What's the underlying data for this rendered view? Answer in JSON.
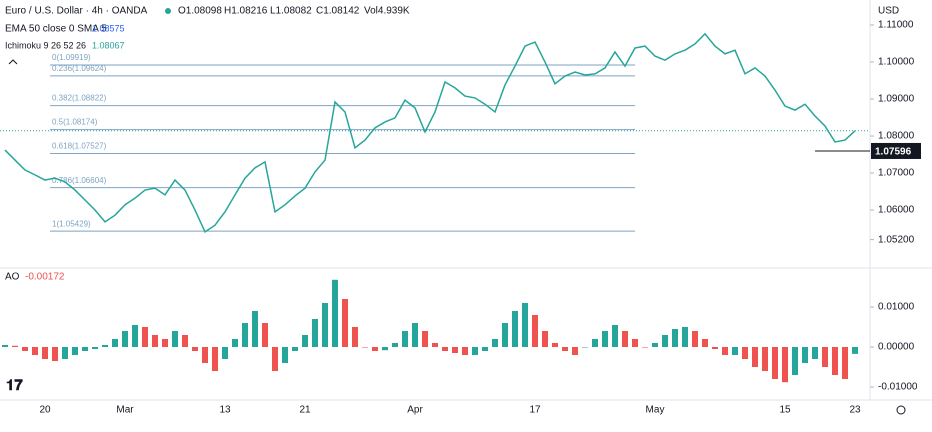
{
  "chart_data": [
    {
      "type": "line",
      "title": "Euro / U.S. Dollar · 4h · OANDA",
      "ohlc": [
        "O1.08098",
        "H1.08216",
        "L1.08082",
        "C1.08142",
        "Vol4.939K"
      ],
      "indicators": [
        {
          "label": "EMA 50 close 0 SMA 5",
          "value": "1.08575"
        },
        {
          "label": "Ichimoku 9 26 52 26",
          "value": "1.08067"
        }
      ],
      "currency": "USD",
      "categories": [
        null,
        null,
        null,
        null,
        "20",
        null,
        null,
        null,
        null,
        null,
        null,
        null,
        "Mar",
        null,
        null,
        null,
        null,
        null,
        null,
        null,
        null,
        null,
        "13",
        null,
        null,
        null,
        null,
        null,
        null,
        null,
        "21",
        null,
        null,
        null,
        null,
        null,
        null,
        null,
        null,
        null,
        null,
        "Apr",
        null,
        null,
        null,
        null,
        null,
        null,
        null,
        null,
        null,
        null,
        null,
        "17",
        null,
        null,
        null,
        null,
        null,
        null,
        null,
        null,
        null,
        null,
        null,
        "May",
        null,
        null,
        null,
        null,
        null,
        null,
        null,
        null,
        null,
        null,
        null,
        null,
        "15",
        null,
        null,
        null,
        null,
        null,
        null,
        "23"
      ],
      "values": [
        1.0762,
        1.0735,
        1.0708,
        1.0695,
        1.0681,
        1.0686,
        1.0676,
        1.0654,
        1.0627,
        1.06,
        1.0568,
        1.0586,
        1.0614,
        1.0632,
        1.0654,
        1.0659,
        1.0641,
        1.0681,
        1.0654,
        1.06,
        1.0541,
        1.0559,
        1.0595,
        1.0641,
        1.0686,
        1.0714,
        1.073,
        1.0595,
        1.0614,
        1.0638,
        1.0659,
        1.0703,
        1.0735,
        1.0892,
        1.0865,
        1.0768,
        1.0789,
        1.0822,
        1.0838,
        1.0849,
        1.0897,
        1.0876,
        1.0811,
        1.0865,
        1.0946,
        1.093,
        1.0908,
        1.0903,
        1.0886,
        1.0865,
        1.0938,
        1.0989,
        1.1043,
        1.1054,
        1.1,
        1.0941,
        1.0962,
        1.0973,
        1.0965,
        1.0968,
        1.0984,
        1.1027,
        1.0989,
        1.1038,
        1.1043,
        1.1016,
        1.1005,
        1.1022,
        1.1032,
        1.1049,
        1.1076,
        1.1043,
        1.1022,
        1.1032,
        1.0968,
        1.0984,
        1.0962,
        1.0924,
        1.0881,
        1.087,
        1.0886,
        1.0854,
        1.0827,
        1.0784,
        1.0789,
        1.0814
      ],
      "color": "#26a69a",
      "fib_levels": [
        {
          "label": "0(1.09919)",
          "value": 1.09919
        },
        {
          "label": "0.236(1.09624)",
          "value": 1.09624
        },
        {
          "label": "0.382(1.08822)",
          "value": 1.08822
        },
        {
          "label": "0.5(1.08174)",
          "value": 1.08174
        },
        {
          "label": "0.618(1.07527)",
          "value": 1.07527
        },
        {
          "label": "0.786(1.06604)",
          "value": 1.06604
        },
        {
          "label": "1(1.05429)",
          "value": 1.05429
        }
      ],
      "fib_color": "#7ea3c4",
      "marked_price": 1.07596,
      "last_price": 1.08142,
      "ylim": [
        1.04514,
        1.11676
      ],
      "yticks": [
        {
          "value": 1.11,
          "label": "1.11000"
        },
        {
          "value": 1.1,
          "label": "1.10000"
        },
        {
          "value": 1.09,
          "label": "1.09000"
        },
        {
          "value": 1.08,
          "label": "1.08000"
        },
        {
          "value": 1.07,
          "label": "1.07000"
        },
        {
          "value": 1.06,
          "label": "1.06000"
        },
        {
          "value": 1.052,
          "label": "1.05200"
        }
      ]
    },
    {
      "type": "bar",
      "title": "AO",
      "values": [
        0.0005,
        0.0003,
        -0.001,
        -0.002,
        -0.003,
        -0.0035,
        -0.003,
        -0.002,
        -0.001,
        -0.0005,
        0.0005,
        0.002,
        0.004,
        0.0055,
        0.005,
        0.003,
        0.002,
        0.004,
        0.003,
        -0.001,
        -0.004,
        -0.006,
        -0.003,
        0.002,
        0.006,
        0.009,
        0.006,
        -0.006,
        -0.004,
        -0.001,
        0.003,
        0.007,
        0.011,
        0.0168,
        0.012,
        0.005,
        0.0,
        -0.001,
        -0.0008,
        0.001,
        0.004,
        0.006,
        0.004,
        0.001,
        -0.001,
        -0.0015,
        -0.002,
        -0.002,
        -0.001,
        0.002,
        0.006,
        0.009,
        0.011,
        0.008,
        0.004,
        0.001,
        -0.001,
        -0.002,
        0.0,
        0.002,
        0.004,
        0.0055,
        0.004,
        0.002,
        0.0,
        0.001,
        0.003,
        0.0045,
        0.005,
        0.004,
        0.002,
        -0.0005,
        -0.002,
        -0.002,
        -0.003,
        -0.005,
        -0.006,
        -0.008,
        -0.0088,
        -0.007,
        -0.004,
        -0.003,
        -0.005,
        -0.007,
        -0.008,
        -0.00172
      ],
      "up_color": "#26a69a",
      "down_color": "#ef5350",
      "ylim": [
        -0.01325,
        0.01925
      ],
      "yticks": [
        {
          "value": 0.01,
          "label": "0.01000"
        },
        {
          "value": 0,
          "label": "0.00000"
        },
        {
          "value": -0.01,
          "label": "-0.01000"
        }
      ]
    }
  ]
}
